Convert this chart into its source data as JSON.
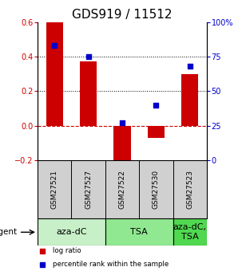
{
  "title": "GDS919 / 11512",
  "samples": [
    "GSM27521",
    "GSM27527",
    "GSM27522",
    "GSM27530",
    "GSM27523"
  ],
  "log_ratio": [
    0.6,
    0.37,
    -0.21,
    -0.07,
    0.3
  ],
  "percentile_rank": [
    83,
    75,
    27,
    40,
    68
  ],
  "agents": [
    {
      "label": "aza-dC",
      "start": 0,
      "end": 2,
      "color": "#c8f0c8"
    },
    {
      "label": "TSA",
      "start": 2,
      "end": 4,
      "color": "#90e890"
    },
    {
      "label": "aza-dC,\nTSA",
      "start": 4,
      "end": 5,
      "color": "#50d850"
    }
  ],
  "agent_label": "agent",
  "bar_color": "#cc0000",
  "dot_color": "#0000cc",
  "ylim_left": [
    -0.2,
    0.6
  ],
  "ylim_right": [
    0,
    100
  ],
  "yticks_left": [
    -0.2,
    0.0,
    0.2,
    0.4,
    0.6
  ],
  "yticks_right": [
    0,
    25,
    50,
    75,
    100
  ],
  "grid_values": [
    0.2,
    0.4
  ],
  "zero_line": 0.0,
  "legend_items": [
    {
      "label": "log ratio",
      "color": "#cc0000"
    },
    {
      "label": "percentile rank within the sample",
      "color": "#0000cc"
    }
  ],
  "sample_bg_color": "#d0d0d0",
  "background_color": "#ffffff",
  "title_fontsize": 11,
  "tick_fontsize": 7,
  "sample_fontsize": 6.5,
  "agent_fontsize": 8
}
